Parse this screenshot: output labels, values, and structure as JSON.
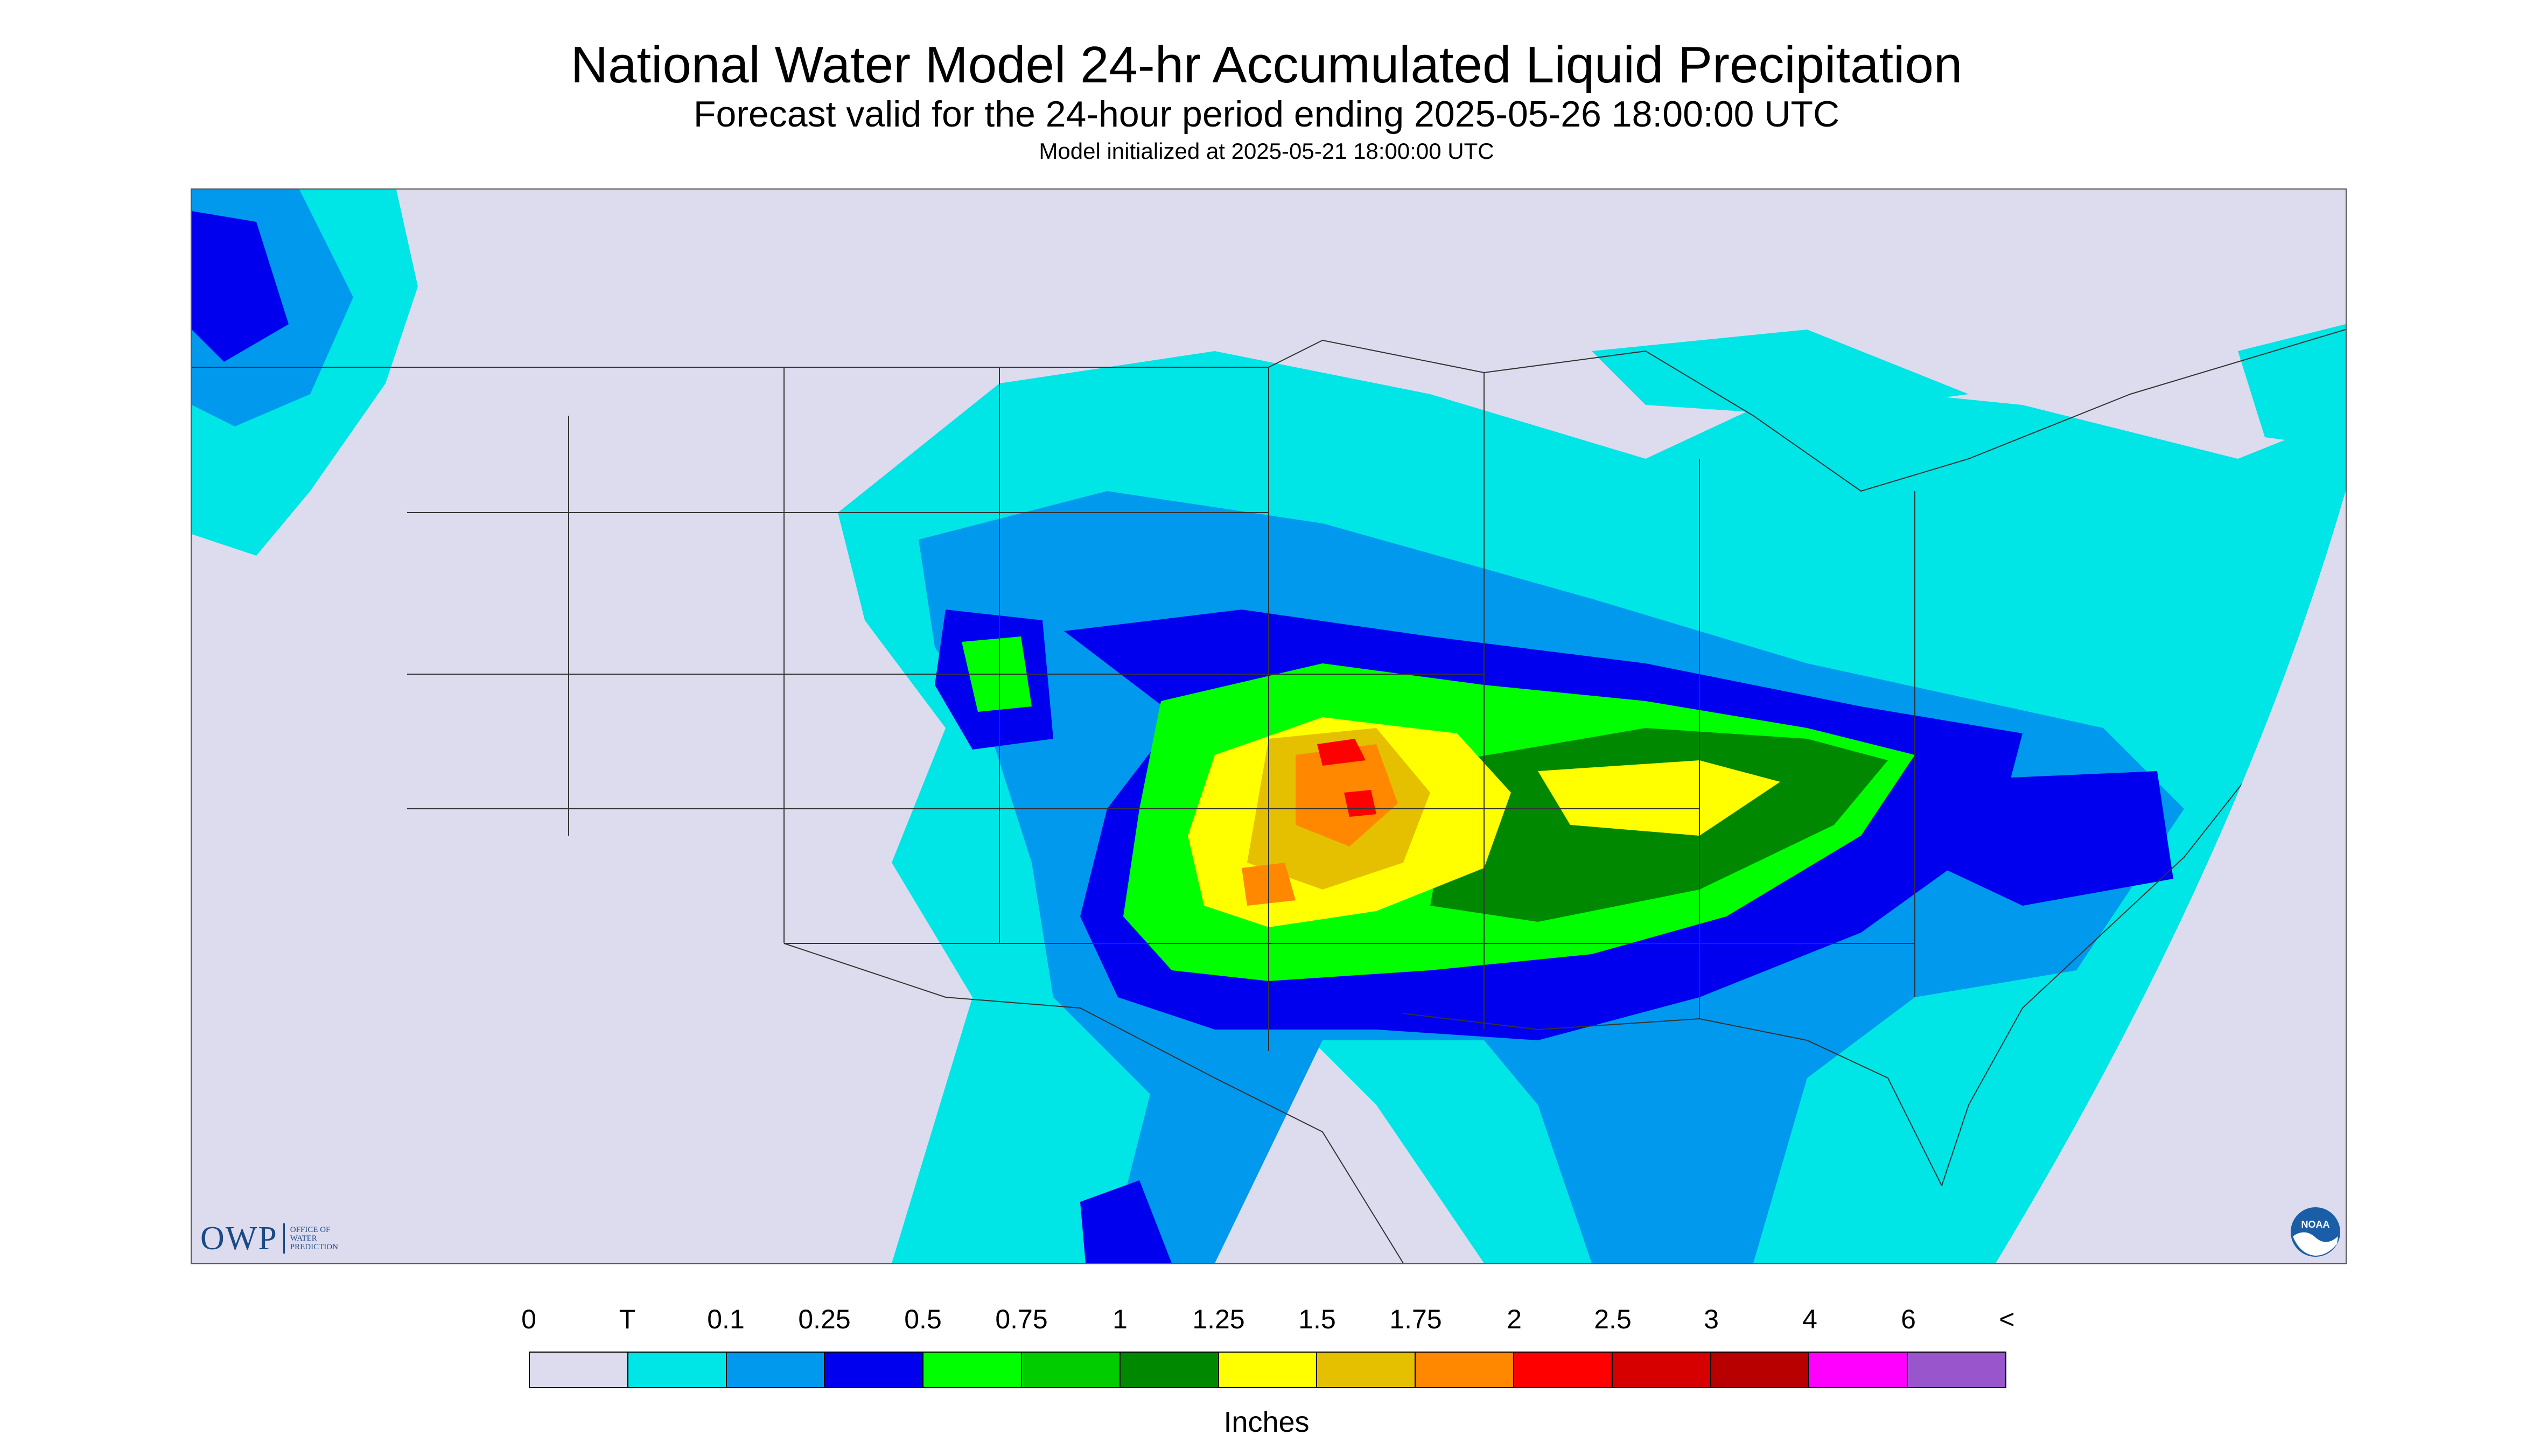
{
  "header": {
    "title": "National Water Model 24-hr Accumulated Liquid Precipitation",
    "subtitle": "Forecast valid for the 24-hour period ending 2025-05-26 18:00:00 UTC",
    "init": "Model initialized at 2025-05-21 18:00:00 UTC"
  },
  "logos": {
    "owp_big": "OWP",
    "owp_small": [
      "OFFICE OF",
      "WATER",
      "PREDICTION"
    ],
    "noaa": "NOAA"
  },
  "legend": {
    "tick_labels": [
      "0",
      "T",
      "0.1",
      "0.25",
      "0.5",
      "0.75",
      "1",
      "1.25",
      "1.5",
      "1.75",
      "2",
      "2.5",
      "3",
      "4",
      "6",
      "<"
    ],
    "colors": [
      "#dcdcee",
      "#00e5e5",
      "#0099ee",
      "#0000ee",
      "#00ff00",
      "#00cc00",
      "#008800",
      "#ffff00",
      "#e5c000",
      "#ff8800",
      "#ff0000",
      "#d60000",
      "#b80000",
      "#ff00ff",
      "#9955cc"
    ],
    "units": "Inches"
  },
  "map_colors": {
    "background": "#dcdcee",
    "trace": "#00e5e5",
    "p01": "#0099ee",
    "p025": "#0000ee",
    "p05": "#00ff00",
    "p075": "#00cc00",
    "p1": "#008800",
    "p125": "#ffff00",
    "p15": "#e5c000",
    "p175": "#ff8800",
    "p2": "#ff0000",
    "border": "#333333"
  }
}
